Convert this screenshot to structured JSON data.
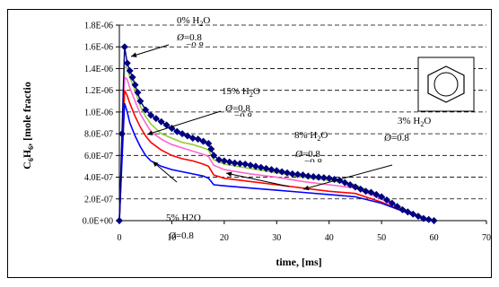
{
  "chart_data": {
    "type": "line",
    "xlabel": "time, [ms]",
    "ylabel": "C6H6, [mole fraction]",
    "ylabel_main": "C",
    "ylabel_sub1": "6",
    "ylabel_mid": "H",
    "ylabel_sub2": "6",
    "ylabel_rest": ", [mole fractio",
    "xlim": [
      0,
      70
    ],
    "ylim": [
      0,
      1.8e-06
    ],
    "xticks": [
      "0",
      "10",
      "20",
      "30",
      "40",
      "50",
      "60",
      "70"
    ],
    "yticks": [
      "0.0E+00",
      "2.0E-07",
      "4.0E-07",
      "6.0E-07",
      "8.0E-07",
      "1.0E-06",
      "1.2E-06",
      "1.4E-06",
      "1.6E-06",
      "1.8E-06"
    ],
    "grid": "horizontal-dashed",
    "series": [
      {
        "name": "0% H2O",
        "color": "#000080",
        "marker": "diamond",
        "x": [
          0,
          0.5,
          1,
          1.5,
          2,
          2.5,
          3,
          3.5,
          4,
          5,
          6,
          7,
          8,
          9,
          10,
          11,
          12,
          13,
          14,
          15,
          16,
          17,
          17.5,
          18,
          19,
          20,
          21,
          22,
          23,
          24,
          25,
          26,
          27,
          28,
          29,
          30,
          31,
          32,
          33,
          34,
          35,
          36,
          37,
          38,
          39,
          40,
          41,
          42,
          43,
          44,
          45,
          46,
          47,
          48,
          49,
          50,
          51,
          52,
          53,
          54,
          55,
          56,
          57,
          58,
          59,
          60
        ],
        "y": [
          0,
          8e-07,
          1.6e-06,
          1.45e-06,
          1.38e-06,
          1.32e-06,
          1.25e-06,
          1.18e-06,
          1.1e-06,
          1.02e-06,
          9.7e-07,
          9.4e-07,
          9.1e-07,
          8.8e-07,
          8.5e-07,
          8.2e-07,
          8e-07,
          7.8e-07,
          7.6e-07,
          7.5e-07,
          7.3e-07,
          7.1e-07,
          6.6e-07,
          6e-07,
          5.6e-07,
          5.5e-07,
          5.4e-07,
          5.3e-07,
          5.25e-07,
          5.2e-07,
          5.1e-07,
          5e-07,
          4.9e-07,
          4.8e-07,
          4.7e-07,
          4.6e-07,
          4.5e-07,
          4.4e-07,
          4.3e-07,
          4.25e-07,
          4.2e-07,
          4.1e-07,
          4.05e-07,
          4e-07,
          3.95e-07,
          3.9e-07,
          3.8e-07,
          3.7e-07,
          3.5e-07,
          3.3e-07,
          3.1e-07,
          2.9e-07,
          2.7e-07,
          2.6e-07,
          2.4e-07,
          2.2e-07,
          1.9e-07,
          1.6e-07,
          1.3e-07,
          1e-07,
          8e-08,
          6e-08,
          4e-08,
          2e-08,
          1e-08,
          0
        ]
      },
      {
        "name": "15% H2O",
        "color": "#99cc33",
        "marker": "none",
        "x": [
          0,
          0.5,
          1,
          1.5,
          2,
          3,
          4,
          5,
          6,
          8,
          10,
          12,
          14,
          16,
          17,
          17.5,
          18,
          20,
          25,
          30,
          35,
          40,
          45,
          50,
          55,
          58,
          60
        ],
        "y": [
          0,
          7e-07,
          1.42e-06,
          1.4e-06,
          1.32e-06,
          1.2e-06,
          1.05e-06,
          9.6e-07,
          8.9e-07,
          8e-07,
          7.6e-07,
          7.2e-07,
          7e-07,
          6.7e-07,
          6.5e-07,
          6e-07,
          5.6e-07,
          5.2e-07,
          4.8e-07,
          4.4e-07,
          4e-07,
          3.7e-07,
          3.3e-07,
          2.2e-07,
          9e-08,
          3e-08,
          0
        ]
      },
      {
        "name": "8% H2O",
        "color": "#ff66cc",
        "marker": "none",
        "x": [
          0,
          0.5,
          1,
          1.5,
          2,
          3,
          4,
          5,
          6,
          8,
          10,
          12,
          14,
          16,
          17,
          17.5,
          18,
          20,
          25,
          30,
          35,
          40,
          45,
          50,
          55,
          58,
          60
        ],
        "y": [
          0,
          6.5e-07,
          1.32e-06,
          1.3e-06,
          1.22e-06,
          1.1e-06,
          9.8e-07,
          9e-07,
          8.2e-07,
          7.5e-07,
          7e-07,
          6.7e-07,
          6.4e-07,
          6.1e-07,
          5.9e-07,
          5.5e-07,
          5.1e-07,
          4.7e-07,
          4.3e-07,
          4e-07,
          3.6e-07,
          3.3e-07,
          3e-07,
          2e-07,
          8e-08,
          3e-08,
          0
        ]
      },
      {
        "name": "3% H2O",
        "color": "#ff0000",
        "marker": "none",
        "x": [
          0,
          0.5,
          1,
          1.5,
          2,
          3,
          4,
          5,
          6,
          8,
          10,
          12,
          14,
          16,
          17,
          17.5,
          18,
          20,
          25,
          30,
          35,
          40,
          45,
          50,
          55,
          58,
          60
        ],
        "y": [
          0,
          6e-07,
          1.2e-06,
          1.15e-06,
          1.08e-06,
          9.6e-07,
          8.6e-07,
          7.8e-07,
          7.2e-07,
          6.5e-07,
          6e-07,
          5.7e-07,
          5.5e-07,
          5.2e-07,
          5e-07,
          4.6e-07,
          4.2e-07,
          3.9e-07,
          3.6e-07,
          3.3e-07,
          3e-07,
          2.7e-07,
          2.5e-07,
          1.7e-07,
          7e-08,
          2e-08,
          0
        ]
      },
      {
        "name": "5% H2O",
        "color": "#0000ff",
        "marker": "none",
        "x": [
          0,
          0.5,
          1,
          1.5,
          2,
          3,
          4,
          5,
          6,
          8,
          10,
          12,
          14,
          16,
          17,
          17.5,
          18,
          20,
          25,
          30,
          35,
          40,
          45,
          50,
          55,
          58,
          60
        ],
        "y": [
          0,
          5.5e-07,
          1.08e-06,
          1e-06,
          9e-07,
          7.8e-07,
          6.8e-07,
          6e-07,
          5.5e-07,
          5e-07,
          4.7e-07,
          4.5e-07,
          4.3e-07,
          4.1e-07,
          3.9e-07,
          3.6e-07,
          3.3e-07,
          3.2e-07,
          3e-07,
          2.8e-07,
          2.6e-07,
          2.4e-07,
          2.2e-07,
          1.6e-07,
          7e-08,
          2e-08,
          0
        ]
      }
    ],
    "annotations": [
      {
        "line1": "0% H2O",
        "pct": "0%",
        "h2o": "H",
        "sub": "2",
        "o": "O",
        "phi_value": "=0.8",
        "ghost": "=0.8"
      },
      {
        "line1": "15% H2O",
        "pct": "15%",
        "h2o": "H",
        "sub": "2",
        "o": "O",
        "phi_value": "=0.8",
        "ghost": "=0.8"
      },
      {
        "line1": "8% H2O",
        "pct": "8%",
        "h2o": "H",
        "sub": "2",
        "o": "O",
        "phi_value": "=0.8",
        "ghost": "=0.8"
      },
      {
        "line1": "3% H2O",
        "pct": "3%",
        "h2o": "H",
        "sub": "2",
        "o": "O",
        "phi_value": "=0.8",
        "ghost": ""
      },
      {
        "line1": "5% H2O",
        "pct": "5% H2O",
        "h2o": "",
        "sub": "",
        "o": "",
        "phi_value": "=0.8",
        "ghost": ""
      }
    ],
    "phi_symbol": "Ø",
    "inset_icon": "benzene-ring-icon"
  }
}
